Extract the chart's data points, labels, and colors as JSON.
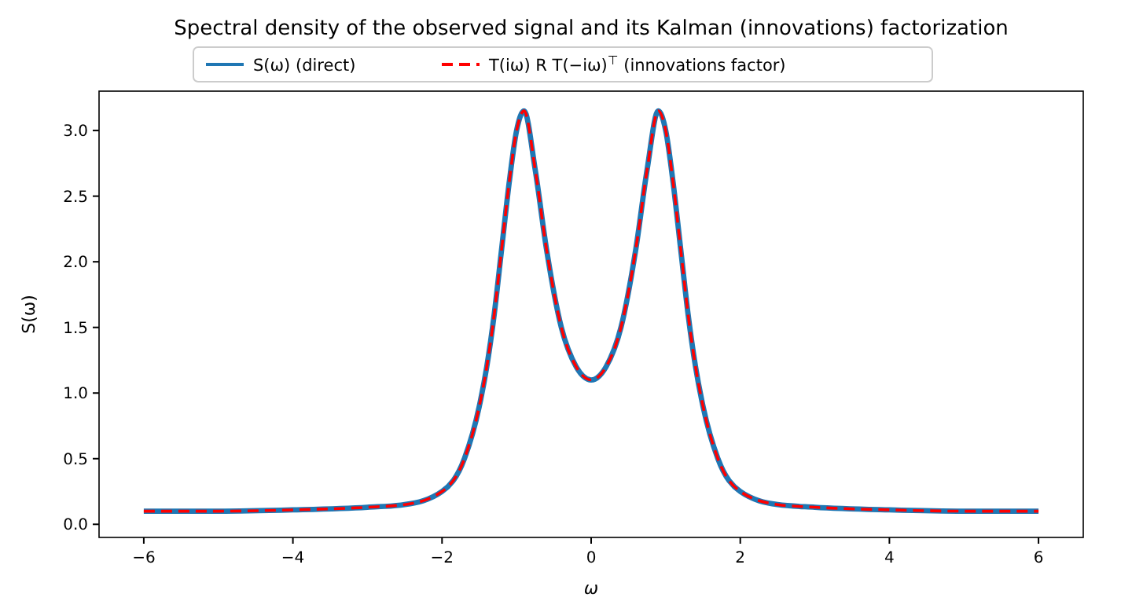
{
  "chart_data": {
    "type": "line",
    "title": "Spectral density of the observed signal and its Kalman (innovations) factorization",
    "xlabel": "ω",
    "ylabel": "S(ω)",
    "xlim": [
      -6.6,
      6.6
    ],
    "ylim": [
      -0.1,
      3.3
    ],
    "xticks": [
      {
        "value": -6,
        "label": "−6"
      },
      {
        "value": -4,
        "label": "−4"
      },
      {
        "value": -2,
        "label": "−2"
      },
      0,
      2,
      4,
      6
    ],
    "yticks": [
      {
        "value": 0,
        "label": "0.0"
      },
      0.5,
      {
        "value": 1,
        "label": "1.0"
      },
      1.5,
      {
        "value": 2,
        "label": "2.0"
      },
      2.5,
      {
        "value": 3,
        "label": "3.0"
      }
    ],
    "grid": false,
    "legend": "top",
    "x": [
      -6,
      -5,
      -4,
      -3,
      -2.5,
      -2,
      -1.7,
      -1.5,
      -1.4,
      -1.3,
      -1.2,
      -1.1,
      -1,
      -0.9,
      -0.75,
      -0.6,
      -0.4,
      -0.2,
      0,
      0.2,
      0.4,
      0.6,
      0.75,
      0.9,
      1,
      1.1,
      1.2,
      1.3,
      1.4,
      1.5,
      1.7,
      2,
      2.5,
      3,
      4,
      5,
      6
    ],
    "series": [
      {
        "name": "S(ω) (direct)",
        "color": "#1f77b4",
        "line_style": "solid",
        "values": [
          0.1,
          0.1,
          0.11,
          0.13,
          0.15,
          0.25,
          0.5,
          0.9,
          1.2,
          1.6,
          2.1,
          2.6,
          3.0,
          3.15,
          2.7,
          2.1,
          1.5,
          1.2,
          1.1,
          1.2,
          1.5,
          2.1,
          2.7,
          3.15,
          3.0,
          2.6,
          2.1,
          1.6,
          1.2,
          0.9,
          0.5,
          0.25,
          0.15,
          0.13,
          0.11,
          0.1,
          0.1
        ]
      },
      {
        "name": "T(iω) R T(−iω)$^{⊤}$ (innovations factor)",
        "color": "#ff0000",
        "line_style": "dashed",
        "values": [
          0.1,
          0.1,
          0.11,
          0.13,
          0.15,
          0.25,
          0.5,
          0.9,
          1.2,
          1.6,
          2.1,
          2.6,
          3.0,
          3.15,
          2.7,
          2.1,
          1.5,
          1.2,
          1.1,
          1.2,
          1.5,
          2.1,
          2.7,
          3.15,
          3.0,
          2.6,
          2.1,
          1.6,
          1.2,
          0.9,
          0.5,
          0.25,
          0.15,
          0.13,
          0.11,
          0.1,
          0.1
        ]
      }
    ]
  }
}
